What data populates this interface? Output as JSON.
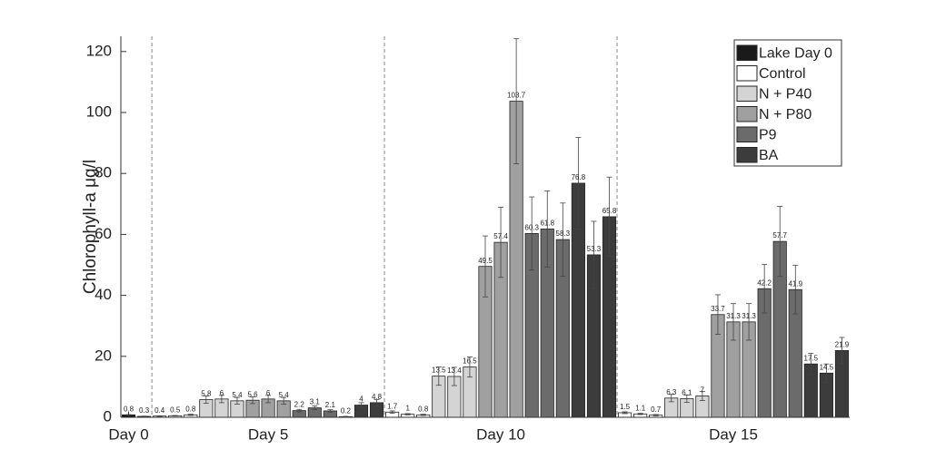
{
  "chart_data": {
    "type": "bar",
    "y_label": "Chlorophyll-a μg/l",
    "xlim": [
      0.5,
      47.5
    ],
    "xticks": [
      {
        "value": 1,
        "label": "Day 0"
      },
      {
        "value": 10,
        "label": "Day 5"
      },
      {
        "value": 25,
        "label": "Day 10"
      },
      {
        "value": 40,
        "label": "Day 15"
      }
    ],
    "vlines": [
      2.5,
      17.5,
      32.5
    ],
    "ylim": [
      0,
      125
    ],
    "yticks": [
      0,
      20,
      40,
      60,
      80,
      100,
      120
    ],
    "legend": "top-right",
    "series": [
      {
        "name": "Lake Day 0",
        "color": "#1a1a1a",
        "x": [
          1,
          2
        ],
        "values": [
          0.8,
          0.3
        ],
        "errors": [
          0.1,
          0.1
        ]
      },
      {
        "name": "Control",
        "color": "#ffffff",
        "x": [
          3,
          4,
          5,
          18,
          19,
          20,
          33,
          34,
          35
        ],
        "values": [
          0.4,
          0.5,
          0.8,
          1.7,
          1,
          0.8,
          1.5,
          1.1,
          0.7
        ],
        "errors": [
          0.1,
          0.1,
          0.2,
          0.4,
          0.2,
          0.2,
          0.3,
          0.2,
          0.2
        ]
      },
      {
        "name": "N + P40",
        "color": "#d4d4d4",
        "x": [
          6,
          7,
          8,
          21,
          22,
          23,
          36,
          37,
          38
        ],
        "values": [
          5.8,
          6,
          5.4,
          13.5,
          13.4,
          16.5,
          6.3,
          6.1,
          7
        ],
        "errors": [
          1.2,
          1.2,
          1.1,
          3,
          3,
          3.3,
          1.2,
          1.2,
          1.5
        ]
      },
      {
        "name": "N + P80",
        "color": "#a0a0a0",
        "x": [
          9,
          10,
          11,
          24,
          25,
          26,
          39,
          40,
          41
        ],
        "values": [
          5.6,
          6,
          5.4,
          49.5,
          57.4,
          103.7,
          33.7,
          31.3,
          31.3
        ],
        "errors": [
          1.1,
          1.2,
          1.1,
          10,
          11.5,
          20.5,
          6.5,
          6,
          6
        ]
      },
      {
        "name": "P9",
        "color": "#6b6b6b",
        "x": [
          12,
          13,
          14,
          27,
          28,
          29,
          42,
          43,
          44
        ],
        "values": [
          2.2,
          3.1,
          2.1,
          60.3,
          61.8,
          58.3,
          42.2,
          57.7,
          41.9
        ],
        "errors": [
          0.4,
          0.6,
          0.4,
          12,
          12.5,
          12,
          8,
          11.5,
          8
        ]
      },
      {
        "name": "BA",
        "color": "#3c3c3c",
        "x": [
          15,
          16,
          17,
          30,
          31,
          32,
          45,
          46,
          47
        ],
        "values": [
          0.2,
          4,
          4.8,
          76.8,
          53.3,
          65.8,
          17.5,
          14.5,
          21.9
        ],
        "errors": [
          0.1,
          0.8,
          1,
          15,
          11,
          13,
          3.5,
          3,
          4.3
        ]
      }
    ]
  }
}
